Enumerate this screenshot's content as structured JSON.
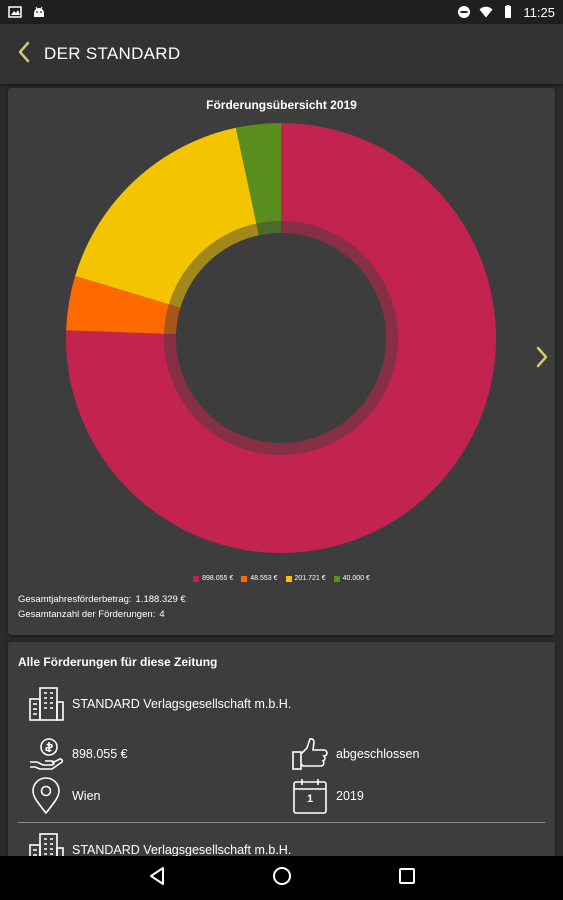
{
  "status_bar": {
    "time": "11:25"
  },
  "app_bar": {
    "title": "DER STANDARD"
  },
  "colors": {
    "accent": "#d4c96a",
    "magenta": "#c2244f",
    "orange": "#ff6a00",
    "yellow": "#f5c400",
    "green": "#5a8f1f"
  },
  "chart_data": {
    "type": "pie",
    "title": "Förderungsübersicht 2019",
    "slices": [
      {
        "label": "898.055 €",
        "value": 898055,
        "color": "#c2244f"
      },
      {
        "label": "48.553 €",
        "value": 48553,
        "color": "#ff6a00"
      },
      {
        "label": "201.721 €",
        "value": 201721,
        "color": "#f5c400"
      },
      {
        "label": "40.000 €",
        "value": 40000,
        "color": "#5a8f1f"
      }
    ],
    "legend_position": "bottom"
  },
  "summary": {
    "total_label": "Gesamtjahresförderbetrag:",
    "total_value": "1.188.329 €",
    "count_label": "Gesamtanzahl der Förderungen:",
    "count_value": "4"
  },
  "list": {
    "header": "Alle Förderungen für diese Zeitung",
    "entries": [
      {
        "company": "STANDARD Verlagsgesellschaft m.b.H.",
        "amount": "898.055 €",
        "status": "abgeschlossen",
        "location": "Wien",
        "year": "2019",
        "calendar_day": "1"
      },
      {
        "company": "STANDARD Verlagsgesellschaft m.b.H."
      }
    ]
  }
}
